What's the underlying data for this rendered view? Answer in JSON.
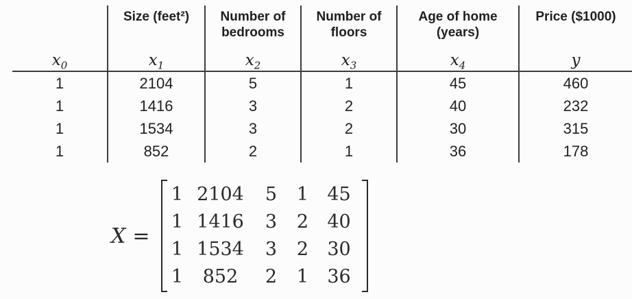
{
  "colors": {
    "bg": "#fcfcfc",
    "text": "#1f1f1f",
    "line": "#3c3c3c",
    "math": "#2a2a2a"
  },
  "table": {
    "columns": [
      {
        "header": "",
        "var": "x",
        "sub": "0"
      },
      {
        "header": "Size (feet²)",
        "var": "x",
        "sub": "1"
      },
      {
        "header": "Number of\nbedrooms",
        "var": "x",
        "sub": "2"
      },
      {
        "header": "Number of\nfloors",
        "var": "x",
        "sub": "3"
      },
      {
        "header": "Age of home\n(years)",
        "var": "x",
        "sub": "4"
      },
      {
        "header": "Price ($1000)",
        "var": "y",
        "sub": ""
      }
    ],
    "rows": [
      [
        "1",
        "2104",
        "5",
        "1",
        "45",
        "460"
      ],
      [
        "1",
        "1416",
        "3",
        "2",
        "40",
        "232"
      ],
      [
        "1",
        "1534",
        "3",
        "2",
        "30",
        "315"
      ],
      [
        "1",
        "852",
        "2",
        "1",
        "36",
        "178"
      ]
    ]
  },
  "matrix": {
    "name": "X",
    "eq": "=",
    "rows": [
      [
        "1",
        "2104",
        "5",
        "1",
        "45"
      ],
      [
        "1",
        "1416",
        "3",
        "2",
        "40"
      ],
      [
        "1",
        "1534",
        "3",
        "2",
        "30"
      ],
      [
        "1",
        "852",
        "2",
        "1",
        "36"
      ]
    ]
  }
}
